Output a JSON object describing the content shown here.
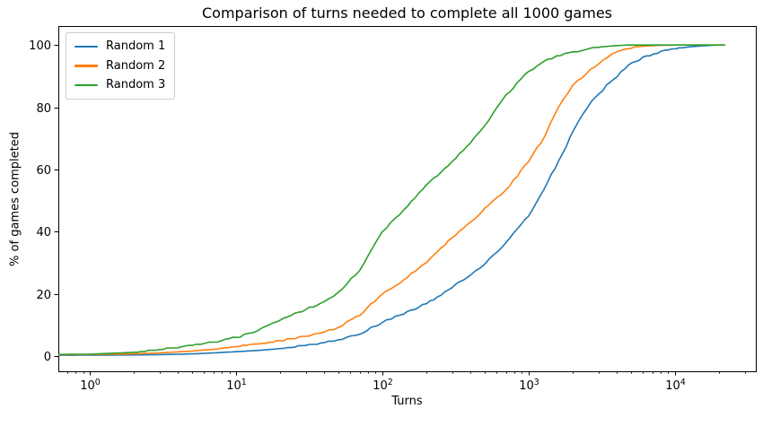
{
  "chart_data": {
    "type": "line",
    "title": "Comparison of turns needed to complete all 1000 games",
    "xlabel": "Turns",
    "ylabel": "% of games completed",
    "x_scale": "log",
    "grid": false,
    "legend_position": "upper left",
    "xlim": [
      0.61,
      35700
    ],
    "ylim": [
      -4.9,
      106.1
    ],
    "x_ticks": [
      1,
      10,
      100,
      1000,
      10000
    ],
    "y_ticks": [
      0,
      20,
      40,
      60,
      80,
      100
    ],
    "axis_color": "#000000",
    "series": [
      {
        "name": "Random 1",
        "color": "#1f77b4",
        "points": [
          [
            0.61,
            0.25
          ],
          [
            1,
            0.3
          ],
          [
            2,
            0.35
          ],
          [
            3,
            0.45
          ],
          [
            5,
            0.7
          ],
          [
            7,
            1.0
          ],
          [
            10,
            1.4
          ],
          [
            15,
            1.9
          ],
          [
            20,
            2.4
          ],
          [
            30,
            3.4
          ],
          [
            40,
            4.3
          ],
          [
            50,
            5.2
          ],
          [
            70,
            7.0
          ],
          [
            100,
            10.8
          ],
          [
            140,
            13.5
          ],
          [
            200,
            16.8
          ],
          [
            300,
            22
          ],
          [
            400,
            26
          ],
          [
            500,
            29.5
          ],
          [
            700,
            36.5
          ],
          [
            1000,
            45
          ],
          [
            1350,
            56
          ],
          [
            1700,
            65
          ],
          [
            2050,
            73
          ],
          [
            2700,
            82
          ],
          [
            3600,
            88
          ],
          [
            4800,
            93.5
          ],
          [
            6400,
            96.5
          ],
          [
            8500,
            98.3
          ],
          [
            12000,
            99.3
          ],
          [
            15000,
            99.7
          ],
          [
            19000,
            99.95
          ],
          [
            22000,
            100
          ]
        ]
      },
      {
        "name": "Random 2",
        "color": "#ff7f0e",
        "points": [
          [
            0.61,
            0.4
          ],
          [
            1,
            0.5
          ],
          [
            2,
            0.7
          ],
          [
            3,
            1.0
          ],
          [
            5,
            1.6
          ],
          [
            7,
            2.2
          ],
          [
            10,
            3.0
          ],
          [
            15,
            4.1
          ],
          [
            20,
            4.9
          ],
          [
            30,
            6.3
          ],
          [
            40,
            7.7
          ],
          [
            50,
            9.2
          ],
          [
            70,
            13
          ],
          [
            100,
            20
          ],
          [
            140,
            24.5
          ],
          [
            200,
            30
          ],
          [
            300,
            38
          ],
          [
            400,
            43
          ],
          [
            500,
            47.5
          ],
          [
            700,
            53.5
          ],
          [
            1000,
            62.5
          ],
          [
            1300,
            71
          ],
          [
            1600,
            80
          ],
          [
            2000,
            87
          ],
          [
            2500,
            91
          ],
          [
            3200,
            95
          ],
          [
            4000,
            97.8
          ],
          [
            5300,
            99.4
          ],
          [
            6500,
            99.7
          ],
          [
            8000,
            99.9
          ],
          [
            10000,
            100
          ],
          [
            22000,
            100
          ]
        ]
      },
      {
        "name": "Random 3",
        "color": "#2ca02c",
        "points": [
          [
            0.61,
            0.5
          ],
          [
            1,
            0.6
          ],
          [
            2,
            1.2
          ],
          [
            3,
            2.1
          ],
          [
            5,
            3.4
          ],
          [
            7,
            4.4
          ],
          [
            10,
            6.0
          ],
          [
            13,
            7.5
          ],
          [
            15,
            9.0
          ],
          [
            20,
            11.5
          ],
          [
            30,
            15
          ],
          [
            40,
            17.5
          ],
          [
            50,
            20.5
          ],
          [
            70,
            27.5
          ],
          [
            100,
            40
          ],
          [
            140,
            47
          ],
          [
            200,
            55
          ],
          [
            300,
            62.5
          ],
          [
            400,
            68.5
          ],
          [
            500,
            74
          ],
          [
            700,
            84
          ],
          [
            1000,
            91.5
          ],
          [
            1250,
            94.5
          ],
          [
            1550,
            96.5
          ],
          [
            2000,
            97.8
          ],
          [
            2500,
            98.6
          ],
          [
            3150,
            99.4
          ],
          [
            4000,
            99.8
          ],
          [
            4700,
            100
          ],
          [
            22000,
            100
          ]
        ]
      }
    ]
  }
}
